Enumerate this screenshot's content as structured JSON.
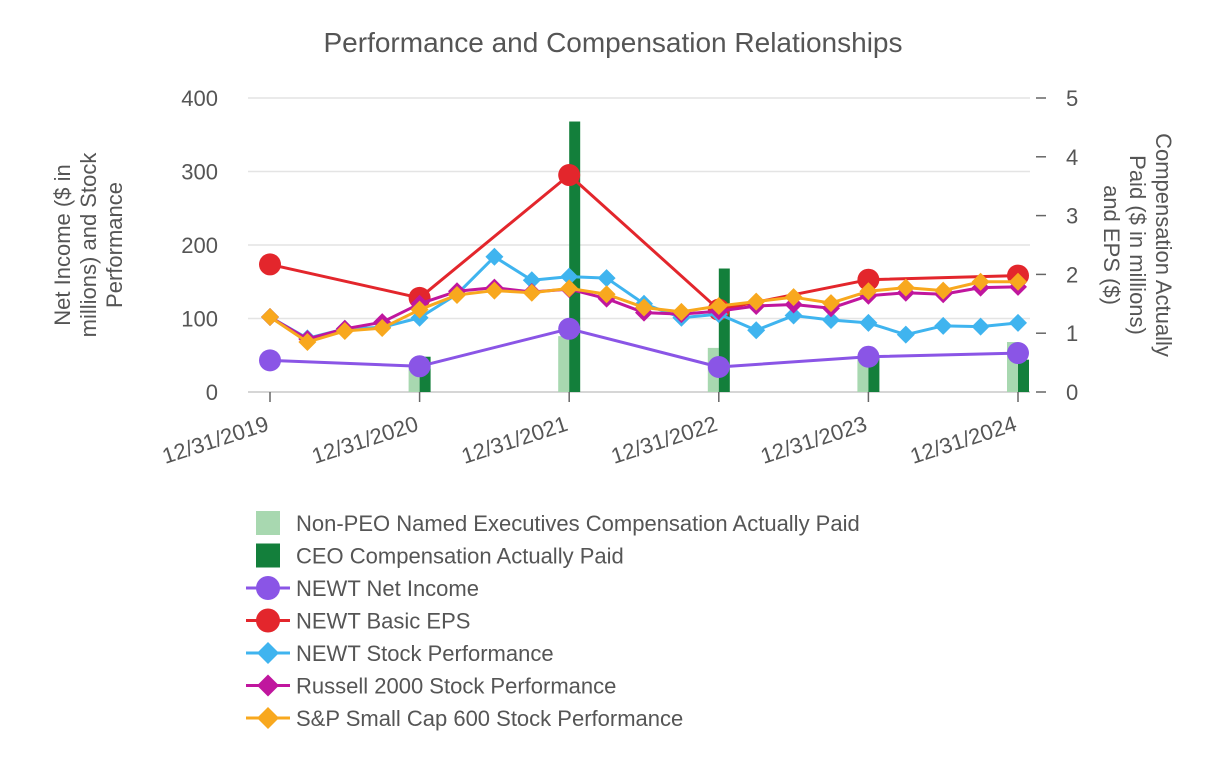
{
  "chart_data": {
    "type": "bar+line",
    "title": "Performance and Compensation Relationships",
    "y_left_label": [
      "Net Income ($ in",
      "millions) and Stock",
      "Performance"
    ],
    "y_right_label": [
      "Compensation Actually",
      "Paid ($ in millions)",
      "and EPS ($)"
    ],
    "y_left_lim": [
      0,
      400
    ],
    "y_right_lim": [
      0,
      5
    ],
    "y_left_ticks": [
      "0",
      "100",
      "200",
      "300",
      "400"
    ],
    "y_right_ticks": [
      "0",
      "1",
      "2",
      "3",
      "4",
      "5"
    ],
    "x_lim": [
      2019.0,
      2024.0
    ],
    "x_ticks": [
      {
        "x": 2019.0,
        "label": "12/31/2019"
      },
      {
        "x": 2020.0,
        "label": "12/31/2020"
      },
      {
        "x": 2021.0,
        "label": "12/31/2021"
      },
      {
        "x": 2022.0,
        "label": "12/31/2022"
      },
      {
        "x": 2023.0,
        "label": "12/31/2023"
      },
      {
        "x": 2024.0,
        "label": "12/31/2024"
      }
    ],
    "bars": [
      {
        "name": "Non-PEO Named Executives Compensation Actually Paid",
        "color": "#a8d8b0",
        "axis": "right",
        "points": [
          {
            "x": 2020.0,
            "y": 0.45
          },
          {
            "x": 2021.0,
            "y": 0.95
          },
          {
            "x": 2022.0,
            "y": 0.75
          },
          {
            "x": 2023.0,
            "y": 0.6
          },
          {
            "x": 2024.0,
            "y": 0.85
          }
        ]
      },
      {
        "name": "CEO Compensation Actually Paid",
        "color": "#137f3b",
        "axis": "right",
        "points": [
          {
            "x": 2020.0,
            "y": 0.6
          },
          {
            "x": 2021.0,
            "y": 4.6
          },
          {
            "x": 2022.0,
            "y": 2.1
          },
          {
            "x": 2023.0,
            "y": 0.6
          },
          {
            "x": 2024.0,
            "y": 0.55
          }
        ]
      }
    ],
    "lines": [
      {
        "name": "NEWT Net Income",
        "color": "#8a55e6",
        "marker": "circle",
        "axis": "left",
        "points": [
          {
            "x": 2019.0,
            "y": 43
          },
          {
            "x": 2020.0,
            "y": 35
          },
          {
            "x": 2021.0,
            "y": 86
          },
          {
            "x": 2022.0,
            "y": 34
          },
          {
            "x": 2023.0,
            "y": 48
          },
          {
            "x": 2024.0,
            "y": 53
          }
        ]
      },
      {
        "name": "NEWT Basic EPS",
        "color": "#e3262c",
        "marker": "circle",
        "axis": "right",
        "points": [
          {
            "x": 2019.0,
            "y": 2.17
          },
          {
            "x": 2020.0,
            "y": 1.6
          },
          {
            "x": 2021.0,
            "y": 3.69
          },
          {
            "x": 2022.0,
            "y": 1.4
          },
          {
            "x": 2023.0,
            "y": 1.91
          },
          {
            "x": 2024.0,
            "y": 1.98
          }
        ]
      },
      {
        "name": "NEWT Stock Performance",
        "color": "#3fb4ef",
        "marker": "diamond",
        "axis": "left",
        "points": [
          {
            "x": 2019.0,
            "y": 102
          },
          {
            "x": 2019.25,
            "y": 73
          },
          {
            "x": 2019.5,
            "y": 86
          },
          {
            "x": 2019.75,
            "y": 88
          },
          {
            "x": 2020.0,
            "y": 101
          },
          {
            "x": 2020.25,
            "y": 133
          },
          {
            "x": 2020.5,
            "y": 184
          },
          {
            "x": 2020.75,
            "y": 152
          },
          {
            "x": 2021.0,
            "y": 157
          },
          {
            "x": 2021.25,
            "y": 155
          },
          {
            "x": 2021.5,
            "y": 120
          },
          {
            "x": 2021.75,
            "y": 101
          },
          {
            "x": 2022.0,
            "y": 106
          },
          {
            "x": 2022.25,
            "y": 84
          },
          {
            "x": 2022.5,
            "y": 104
          },
          {
            "x": 2022.75,
            "y": 98
          },
          {
            "x": 2023.0,
            "y": 94
          },
          {
            "x": 2023.25,
            "y": 78
          },
          {
            "x": 2023.5,
            "y": 90
          },
          {
            "x": 2023.75,
            "y": 89
          },
          {
            "x": 2024.0,
            "y": 94
          }
        ]
      },
      {
        "name": "Russell 2000 Stock Performance",
        "color": "#c0169e",
        "marker": "diamond",
        "axis": "left",
        "points": [
          {
            "x": 2019.0,
            "y": 102
          },
          {
            "x": 2019.25,
            "y": 72
          },
          {
            "x": 2019.5,
            "y": 86
          },
          {
            "x": 2019.75,
            "y": 95
          },
          {
            "x": 2020.0,
            "y": 120
          },
          {
            "x": 2020.25,
            "y": 137
          },
          {
            "x": 2020.5,
            "y": 142
          },
          {
            "x": 2020.75,
            "y": 136
          },
          {
            "x": 2021.0,
            "y": 140
          },
          {
            "x": 2021.25,
            "y": 127
          },
          {
            "x": 2021.5,
            "y": 108
          },
          {
            "x": 2021.75,
            "y": 106
          },
          {
            "x": 2022.0,
            "y": 110
          },
          {
            "x": 2022.25,
            "y": 117
          },
          {
            "x": 2022.5,
            "y": 119
          },
          {
            "x": 2022.75,
            "y": 114
          },
          {
            "x": 2023.0,
            "y": 131
          },
          {
            "x": 2023.25,
            "y": 135
          },
          {
            "x": 2023.5,
            "y": 133
          },
          {
            "x": 2023.75,
            "y": 142
          },
          {
            "x": 2024.0,
            "y": 143
          }
        ]
      },
      {
        "name": "S&P Small Cap 600 Stock Performance",
        "color": "#f8a81e",
        "marker": "diamond",
        "axis": "left",
        "points": [
          {
            "x": 2019.0,
            "y": 102
          },
          {
            "x": 2019.25,
            "y": 68
          },
          {
            "x": 2019.5,
            "y": 83
          },
          {
            "x": 2019.75,
            "y": 87
          },
          {
            "x": 2020.0,
            "y": 112
          },
          {
            "x": 2020.25,
            "y": 132
          },
          {
            "x": 2020.5,
            "y": 138
          },
          {
            "x": 2020.75,
            "y": 135
          },
          {
            "x": 2021.0,
            "y": 141
          },
          {
            "x": 2021.25,
            "y": 133
          },
          {
            "x": 2021.5,
            "y": 115
          },
          {
            "x": 2021.75,
            "y": 109
          },
          {
            "x": 2022.0,
            "y": 117
          },
          {
            "x": 2022.25,
            "y": 123
          },
          {
            "x": 2022.5,
            "y": 129
          },
          {
            "x": 2022.75,
            "y": 121
          },
          {
            "x": 2023.0,
            "y": 137
          },
          {
            "x": 2023.25,
            "y": 142
          },
          {
            "x": 2023.5,
            "y": 138
          },
          {
            "x": 2023.75,
            "y": 150
          },
          {
            "x": 2024.0,
            "y": 150
          }
        ]
      }
    ],
    "legend": [
      {
        "label": "Non-PEO Named Executives Compensation Actually Paid",
        "kind": "square",
        "color": "#a8d8b0"
      },
      {
        "label": "CEO Compensation Actually Paid",
        "kind": "square",
        "color": "#137f3b"
      },
      {
        "label": "NEWT Net Income",
        "kind": "line-circle",
        "color": "#8a55e6"
      },
      {
        "label": "NEWT Basic EPS",
        "kind": "line-circle",
        "color": "#e3262c"
      },
      {
        "label": "NEWT Stock Performance",
        "kind": "line-diamond",
        "color": "#3fb4ef"
      },
      {
        "label": "Russell 2000 Stock Performance",
        "kind": "line-diamond",
        "color": "#c0169e"
      },
      {
        "label": "S&P Small Cap 600 Stock Performance",
        "kind": "line-diamond",
        "color": "#f8a81e"
      }
    ],
    "legend_position": "bottom",
    "grid": true
  }
}
